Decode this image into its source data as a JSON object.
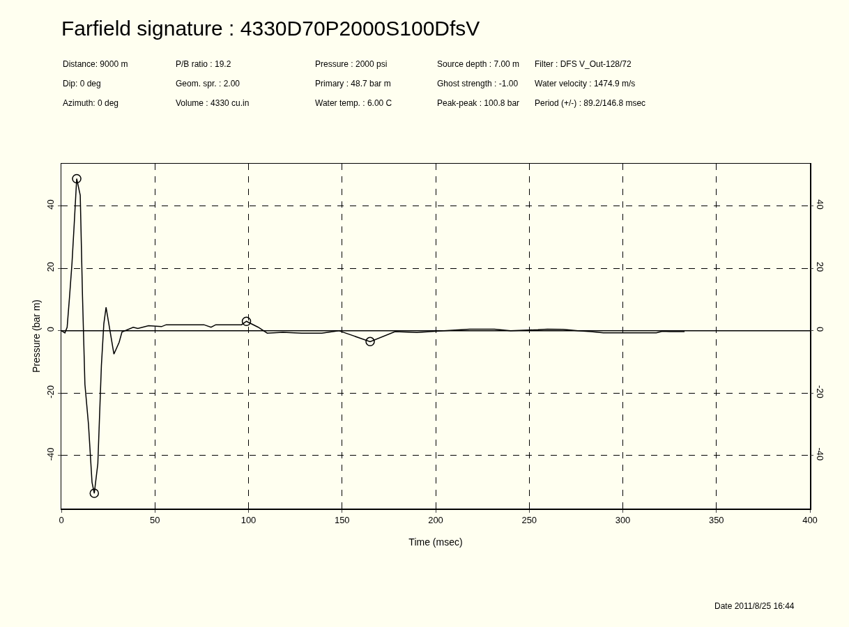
{
  "chart_data": {
    "type": "line",
    "title": "Farfield signature : 4330D70P2000S100DfsV",
    "xlabel": "Time (msec)",
    "ylabel": "Pressure (bar m)",
    "annotations": [
      "Distance: 9000 m",
      "P/B ratio : 19.2",
      "Pressure : 2000 psi",
      "Source depth : 7.00 m",
      "Filter : DFS V_Out-128/72",
      "Dip: 0 deg",
      "Geom. spr. : 2.00",
      "Primary : 48.7 bar m",
      "Ghost strength : -1.00",
      "Water velocity : 1474.9 m/s",
      "Azimuth: 0 deg",
      "Volume : 4330 cu.in",
      "Water temp. : 6.00 C",
      "Peak-peak : 100.8 bar",
      "Period (+/-) : 89.2/146.8 msec",
      "Date 2011/8/25 16:44"
    ],
    "series": [
      {
        "color": "#000000",
        "marker": "none",
        "x": [
          0,
          1.9,
          3.1,
          4.4,
          5.7,
          6.9,
          8.2,
          10.1,
          11.3,
          12.6,
          14.5,
          16.4,
          17.6,
          19.5,
          21.4,
          22.7,
          23.9,
          25.8,
          28.1,
          30.9,
          32.4,
          38.4,
          40.9,
          46.6,
          53.5,
          56,
          76.2,
          80,
          82.5,
          96.3,
          98.9,
          105.2,
          110,
          118.4,
          128.4,
          139.2,
          148.2,
          165,
          178.3,
          190,
          199.9,
          218.2,
          231.4,
          240,
          254.7,
          259.7,
          268,
          276,
          283,
          289.6,
          317.9,
          321.2,
          325,
          333
        ],
        "values": [
          0,
          -0.7,
          1.1,
          11,
          21.7,
          34.4,
          48.7,
          43.4,
          11.2,
          -17.2,
          -30,
          -48.6,
          -52.1,
          -42.6,
          -11.2,
          2.2,
          7.5,
          0.7,
          -7.5,
          -3.7,
          -0.4,
          1.1,
          0.7,
          1.6,
          1.3,
          1.9,
          1.9,
          1.1,
          1.9,
          1.9,
          3,
          1.1,
          -0.8,
          -0.5,
          -0.8,
          -0.8,
          0,
          -3.5,
          -0.3,
          -0.6,
          -0.2,
          0.5,
          0.5,
          0,
          0.3,
          0.5,
          0.4,
          0,
          -0.3,
          -0.7,
          -0.7,
          -0.2,
          -0.3,
          -0.3
        ]
      },
      {
        "type": "scatter",
        "color": "#000000",
        "marker": "circle",
        "x": [
          8.2,
          17.6,
          98.9,
          165
        ],
        "values": [
          48.7,
          -52.1,
          3,
          -3.5
        ]
      }
    ],
    "ref_lines": [
      {
        "axis": "y",
        "value": 0,
        "color": "#000000"
      }
    ],
    "xlim": [
      0,
      400
    ],
    "xticks": [
      0,
      50,
      100,
      150,
      200,
      250,
      300,
      350,
      400
    ],
    "ylim": [
      -57,
      53.5
    ],
    "yticks": [
      -40,
      -20,
      0,
      20,
      40
    ],
    "y2lim": [
      -57,
      53.5
    ],
    "y2ticks": [
      -40,
      -20,
      0,
      20,
      40
    ],
    "grid": true,
    "line_style": "solid"
  }
}
